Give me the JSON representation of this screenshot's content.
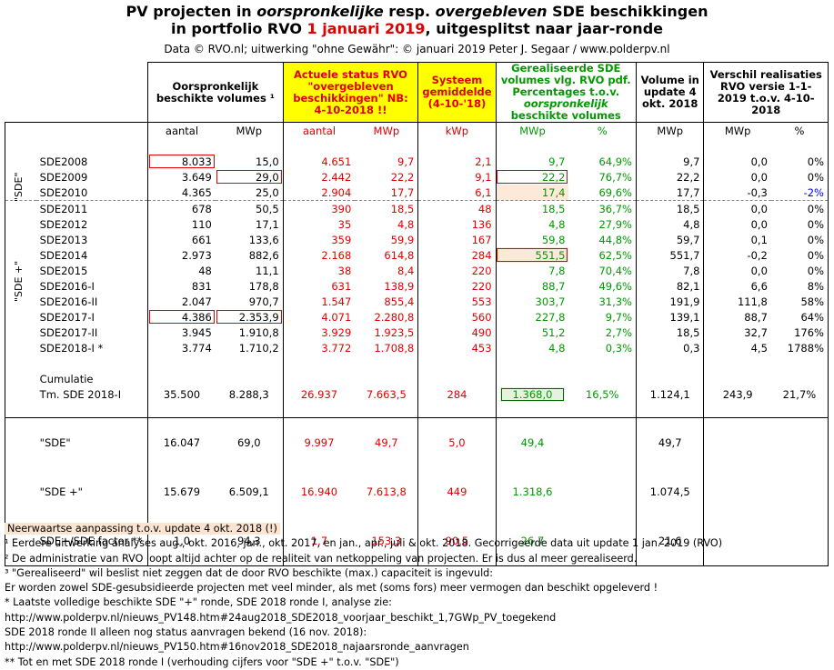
{
  "title": {
    "line1_a": "PV projecten in ",
    "line1_b": "oorspronkelijke",
    "line1_c": " resp. ",
    "line1_d": "overgebleven",
    "line1_e": " SDE beschikkingen",
    "line2_a": "in portfolio RVO ",
    "line2_b": "1 januari 2019",
    "line2_c": ", uitgesplitst naar jaar-ronde"
  },
  "credit": "Data © RVO.nl; uitwerking \"ohne Gewähr\": © januari 2019 Peter J. Segaar / www.polderpv.nl",
  "headers": {
    "h1": "Oorspronkelijk beschikte volumes ¹",
    "h2": "Actuele status RVO \"overgebleven beschikkingen\" NB: 4-10-2018 !!",
    "h3": "Systeem gemiddelde (4-10-'18)",
    "h4a": "Gerealiseerde SDE volumes vlg. RVO pdf. Percentages t.o.v.",
    "h4b": "oorspronkelijk",
    "h4c": "beschikte volumes",
    "h5": "Volume in update 4 okt. 2018",
    "h6": "Verschil realisaties RVO versie 1-1-2019 t.o.v. 4-10-2018"
  },
  "units": [
    "aantal",
    "MWp",
    "aantal",
    "MWp",
    "kWp",
    "MWp",
    "%",
    "MWp",
    "MWp",
    "%"
  ],
  "groups": {
    "sde": "\"SDE\"",
    "sdeplus": "\"SDE +\""
  },
  "rows": [
    {
      "n": "SDE2008",
      "a": "8.033",
      "b": "15,0",
      "c": "4.651",
      "d": "9,7",
      "e": "2,1",
      "f": "9,7",
      "g": "64,9%",
      "h": "9,7",
      "i": "0,0",
      "j": "0%"
    },
    {
      "n": "SDE2009",
      "a": "3.649",
      "b": "29,0",
      "c": "2.442",
      "d": "22,2",
      "e": "9,1",
      "f": "22,2",
      "g": "76,7%",
      "h": "22,2",
      "i": "0,0",
      "j": "0%"
    },
    {
      "n": "SDE2010",
      "a": "4.365",
      "b": "25,0",
      "c": "2.904",
      "d": "17,7",
      "e": "6,1",
      "f": "17,4",
      "g": "69,6%",
      "h": "17,7",
      "i": "-0,3",
      "j": "-2%"
    },
    {
      "n": "SDE2011",
      "a": "678",
      "b": "50,5",
      "c": "390",
      "d": "18,5",
      "e": "48",
      "f": "18,5",
      "g": "36,7%",
      "h": "18,5",
      "i": "0,0",
      "j": "0%"
    },
    {
      "n": "SDE2012",
      "a": "110",
      "b": "17,1",
      "c": "35",
      "d": "4,8",
      "e": "136",
      "f": "4,8",
      "g": "27,9%",
      "h": "4,8",
      "i": "0,0",
      "j": "0%"
    },
    {
      "n": "SDE2013",
      "a": "661",
      "b": "133,6",
      "c": "359",
      "d": "59,9",
      "e": "167",
      "f": "59,8",
      "g": "44,8%",
      "h": "59,7",
      "i": "0,1",
      "j": "0%"
    },
    {
      "n": "SDE2014",
      "a": "2.973",
      "b": "882,6",
      "c": "2.168",
      "d": "614,8",
      "e": "284",
      "f": "551,5",
      "g": "62,5%",
      "h": "551,7",
      "i": "-0,2",
      "j": "0%"
    },
    {
      "n": "SDE2015",
      "a": "48",
      "b": "11,1",
      "c": "38",
      "d": "8,4",
      "e": "220",
      "f": "7,8",
      "g": "70,4%",
      "h": "7,8",
      "i": "0,0",
      "j": "0%"
    },
    {
      "n": "SDE2016-I",
      "a": "831",
      "b": "178,8",
      "c": "631",
      "d": "138,9",
      "e": "220",
      "f": "88,7",
      "g": "49,6%",
      "h": "82,1",
      "i": "6,6",
      "j": "8%"
    },
    {
      "n": "SDE2016-II",
      "a": "2.047",
      "b": "970,7",
      "c": "1.547",
      "d": "855,4",
      "e": "553",
      "f": "303,7",
      "g": "31,3%",
      "h": "191,9",
      "i": "111,8",
      "j": "58%"
    },
    {
      "n": "SDE2017-I",
      "a": "4.386",
      "b": "2.353,9",
      "c": "4.071",
      "d": "2.280,8",
      "e": "560",
      "f": "227,8",
      "g": "9,7%",
      "h": "139,1",
      "i": "88,7",
      "j": "64%"
    },
    {
      "n": "SDE2017-II",
      "a": "3.945",
      "b": "1.910,8",
      "c": "3.929",
      "d": "1.923,5",
      "e": "490",
      "f": "51,2",
      "g": "2,7%",
      "h": "18,5",
      "i": "32,7",
      "j": "176%"
    },
    {
      "n": "SDE2018-I *",
      "a": "3.774",
      "b": "1.710,2",
      "c": "3.772",
      "d": "1.708,8",
      "e": "453",
      "f": "4,8",
      "g": "0,3%",
      "h": "0,3",
      "i": "4,5",
      "j": "1788%"
    }
  ],
  "cumul": {
    "label1": "Cumulatie",
    "label2": "Tm. SDE 2018-I",
    "a": "35.500",
    "b": "8.288,3",
    "c": "26.937",
    "d": "7.663,5",
    "e": "284",
    "f": "1.368,0",
    "g": "16,5%",
    "h": "1.124,1",
    "i": "243,9",
    "j": "21,7%"
  },
  "sums": [
    {
      "n": "\"SDE\"",
      "a": "16.047",
      "b": "69,0",
      "c": "9.997",
      "d": "49,7",
      "e": "5,0",
      "f": "49,4",
      "h": "49,7"
    },
    {
      "n": "\"SDE +\"",
      "a": "15.679",
      "b": "6.509,1",
      "c": "16.940",
      "d": "7.613,8",
      "e": "449",
      "f": "1.318,6",
      "h": "1.074,5"
    },
    {
      "n": "SDE+/SDE factor **",
      "a": "1,0",
      "b": "94,3",
      "c": "1,7",
      "d": "153,3",
      "e": "90,5",
      "f": "26,7",
      "h": "21,6"
    }
  ],
  "notes": {
    "banner": "Neerwaartse aanpassing t.o.v. update 4 okt. 2018 (!)",
    "n1": "¹ Eerdere uitwerking analyses aug., okt. 2016, jan., okt.  2017, en jan., apr., juli & okt. 2018. Gecorrigeerde data uit update 1 jan. 2019 (RVO)",
    "n2": "² De administratie van RVO loopt altijd achter op de realiteit van netkoppeling van projecten. Er is dus al meer gerealiseerd.",
    "n3": "³ \"Gerealiseerd\" wil beslist niet zeggen dat de door RVO beschikte (max.) capaciteit is ingevuld:",
    "n4": "Er worden zowel SDE-gesubsidieerde projecten met veel minder, als met (soms fors) meer vermogen dan beschikt opgeleverd !",
    "n5": "* Laatste volledige beschikte SDE \"+\" ronde, SDE 2018 ronde I, analyse zie:",
    "n6": "http://www.polderpv.nl/nieuws_PV148.htm#24aug2018_SDE2018_voorjaar_beschikt_1,7GWp_PV_toegekend",
    "n7": "SDE 2018 ronde II alleen nog status aanvragen bekend (16 nov. 2018):",
    "n8": "http://www.polderpv.nl/nieuws_PV150.htm#16nov2018_SDE2018_najaarsronde_aanvragen",
    "n9": "** Tot en met SDE 2018 ronde I (verhouding cijfers voor \"SDE +\" t.o.v. \"SDE\")"
  }
}
